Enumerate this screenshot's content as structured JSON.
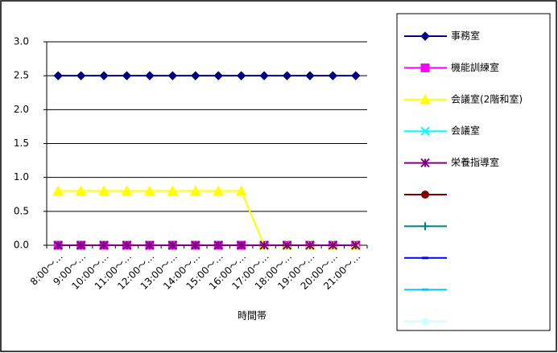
{
  "chart_data": {
    "type": "line",
    "categories": [
      "8:00～…",
      "9:00～…",
      "10:00～…",
      "11:00～…",
      "12:00～…",
      "13:00～…",
      "14:00～…",
      "15:00～…",
      "16:00～…",
      "17:00～…",
      "18:00～…",
      "19:00～…",
      "20:00～…",
      "21:00～…"
    ],
    "x_label": "時間帯",
    "ylim": [
      0,
      3
    ],
    "yticks": [
      {
        "value": 0,
        "label": "0.0"
      },
      0.5,
      {
        "value": 1,
        "label": "1.0"
      },
      1.5,
      {
        "value": 2,
        "label": "2.0"
      },
      2.5,
      {
        "value": 3,
        "label": "3.0"
      }
    ],
    "grid": true,
    "legend": "right",
    "series": [
      {
        "name": "事務室",
        "color": "#000080",
        "marker": "diamond",
        "values": [
          2.5,
          2.5,
          2.5,
          2.5,
          2.5,
          2.5,
          2.5,
          2.5,
          2.5,
          2.5,
          2.5,
          2.5,
          2.5,
          2.5
        ]
      },
      {
        "name": "機能訓練室",
        "color": "#ff00ff",
        "marker": "square",
        "values": [
          0,
          0,
          0,
          0,
          0,
          0,
          0,
          0,
          0,
          0,
          0,
          0,
          0,
          0
        ]
      },
      {
        "name": "会議室(2階和室)",
        "color": "#ffff00",
        "marker": "triangle",
        "values": [
          0.8,
          0.8,
          0.8,
          0.8,
          0.8,
          0.8,
          0.8,
          0.8,
          0.8,
          0,
          0,
          0,
          0,
          0
        ]
      },
      {
        "name": "会議室",
        "color": "#00ffff",
        "marker": "x",
        "values": [
          0,
          0,
          0,
          0,
          0,
          0,
          0,
          0,
          0,
          0,
          0,
          0,
          0,
          0
        ]
      },
      {
        "name": "栄養指導室",
        "color": "#800080",
        "marker": "star",
        "values": [
          0,
          0,
          0,
          0,
          0,
          0,
          0,
          0,
          0,
          0,
          0,
          0,
          0,
          0
        ]
      },
      {
        "name": null,
        "color": "#800000",
        "marker": "circle",
        "values": [
          null,
          null,
          null,
          null,
          null,
          null,
          null,
          null,
          null,
          null,
          null,
          null,
          null,
          null
        ]
      },
      {
        "name": null,
        "color": "#008080",
        "marker": "plus",
        "values": [
          null,
          null,
          null,
          null,
          null,
          null,
          null,
          null,
          null,
          null,
          null,
          null,
          null,
          null
        ]
      },
      {
        "name": null,
        "color": "#0000ff",
        "marker": "dash",
        "values": [
          null,
          null,
          null,
          null,
          null,
          null,
          null,
          null,
          null,
          null,
          null,
          null,
          null,
          null
        ]
      },
      {
        "name": null,
        "color": "#00ccff",
        "marker": "dash",
        "values": [
          null,
          null,
          null,
          null,
          null,
          null,
          null,
          null,
          null,
          null,
          null,
          null,
          null,
          null
        ]
      },
      {
        "name": null,
        "color": "#ccffff",
        "marker": "diamond",
        "values": [
          null,
          null,
          null,
          null,
          null,
          null,
          null,
          null,
          null,
          null,
          null,
          null,
          null,
          null
        ]
      }
    ]
  }
}
